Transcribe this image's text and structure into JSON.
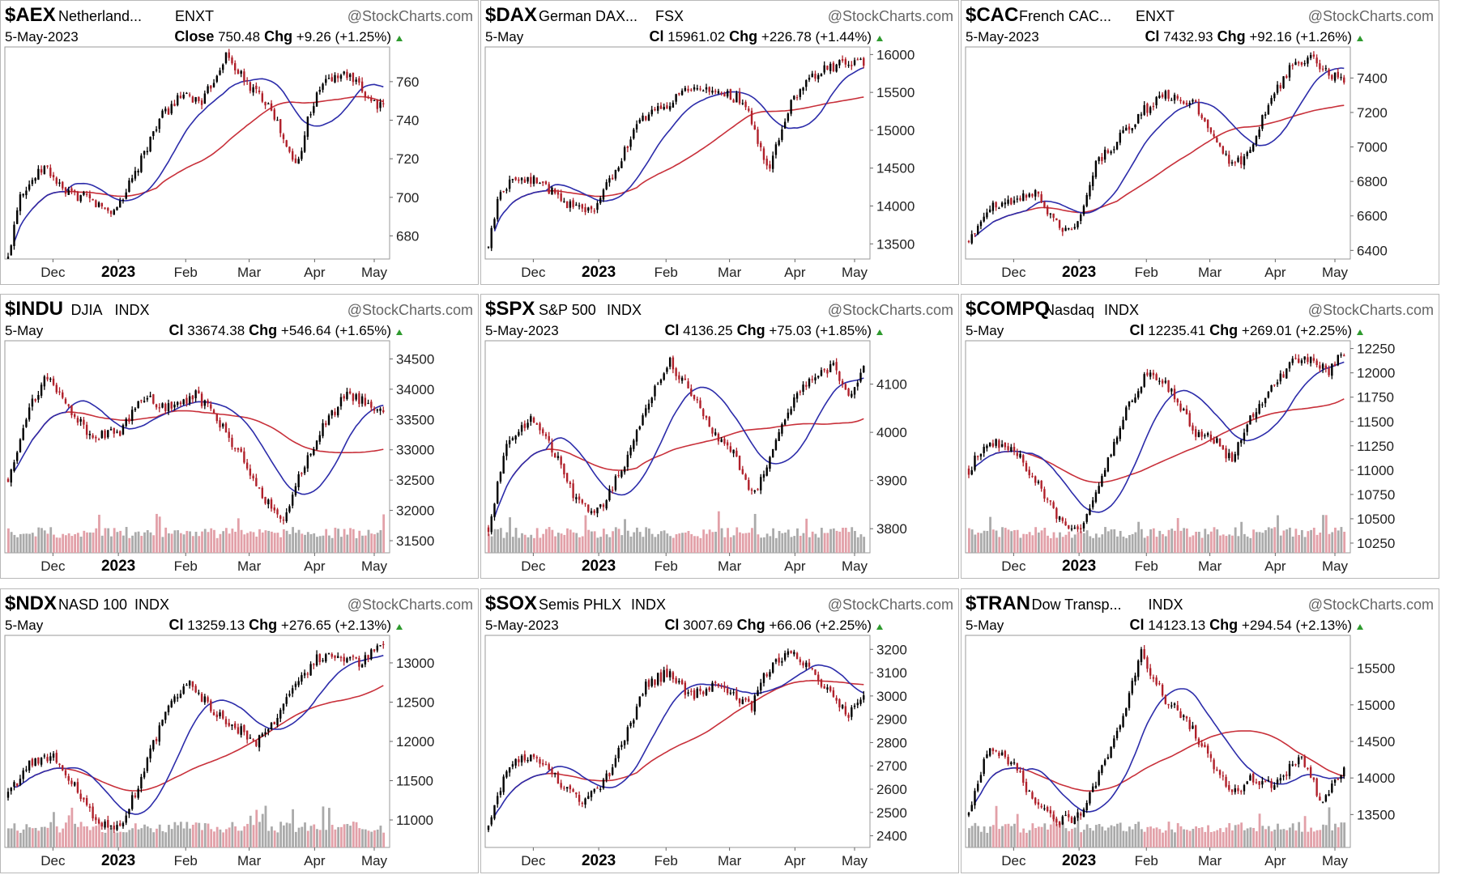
{
  "watermark": "@StockCharts.com",
  "colors": {
    "up": "#000000",
    "down": "#b0202a",
    "ma_short": "#2c2caa",
    "ma_long": "#c8303a",
    "vol_gray": "#aaaaaa",
    "vol_red": "#e2a0a8",
    "up_arrow": "#2e9a2e"
  },
  "chart_data": [
    {
      "type": "candlestick",
      "symbol": "$AEX",
      "name": "Netherland...",
      "exchange": "ENXT",
      "date": "5-May-2023",
      "close_label": "Close",
      "close": "750.48",
      "chg_label": "Chg",
      "chg": "+9.26 (+1.25%)",
      "y_ticks": [
        680,
        700,
        720,
        740,
        760
      ],
      "ylim": [
        668,
        778
      ],
      "x_ticks": [
        "Dec",
        "2023",
        "Feb",
        "Mar",
        "Apr",
        "May"
      ],
      "volume": false,
      "anchors": [
        [
          0,
          668
        ],
        [
          0.03,
          702
        ],
        [
          0.1,
          716
        ],
        [
          0.15,
          702
        ],
        [
          0.2,
          700
        ],
        [
          0.28,
          692
        ],
        [
          0.34,
          712
        ],
        [
          0.4,
          740
        ],
        [
          0.46,
          752
        ],
        [
          0.52,
          750
        ],
        [
          0.58,
          774
        ],
        [
          0.64,
          758
        ],
        [
          0.7,
          748
        ],
        [
          0.74,
          726
        ],
        [
          0.77,
          716
        ],
        [
          0.8,
          742
        ],
        [
          0.84,
          760
        ],
        [
          0.9,
          764
        ],
        [
          0.96,
          752
        ],
        [
          1,
          746
        ]
      ]
    },
    {
      "type": "candlestick",
      "symbol": "$DAX",
      "name": "German DAX...",
      "exchange": "FSX",
      "date": "5-May",
      "close_label": "Cl",
      "close": "15961.02",
      "chg_label": "Chg",
      "chg": "+226.78 (+1.44%)",
      "y_ticks": [
        13500,
        14000,
        14500,
        15000,
        15500,
        16000
      ],
      "ylim": [
        13300,
        16100
      ],
      "x_ticks": [
        "Dec",
        "2023",
        "Feb",
        "Mar",
        "Apr",
        "May"
      ],
      "volume": false,
      "anchors": [
        [
          0,
          13450
        ],
        [
          0.03,
          14200
        ],
        [
          0.08,
          14400
        ],
        [
          0.14,
          14300
        ],
        [
          0.2,
          14050
        ],
        [
          0.28,
          13950
        ],
        [
          0.34,
          14500
        ],
        [
          0.4,
          15100
        ],
        [
          0.46,
          15300
        ],
        [
          0.52,
          15500
        ],
        [
          0.6,
          15500
        ],
        [
          0.68,
          15400
        ],
        [
          0.72,
          14800
        ],
        [
          0.75,
          14500
        ],
        [
          0.8,
          15300
        ],
        [
          0.86,
          15700
        ],
        [
          0.92,
          15850
        ],
        [
          1,
          15900
        ]
      ]
    },
    {
      "type": "candlestick",
      "symbol": "$CAC",
      "name": "French CAC...",
      "exchange": "ENXT",
      "date": "5-May-2023",
      "close_label": "Cl",
      "close": "7432.93",
      "chg_label": "Chg",
      "chg": "+92.16 (+1.26%)",
      "y_ticks": [
        6400,
        6600,
        6800,
        7000,
        7200,
        7400
      ],
      "ylim": [
        6350,
        7580
      ],
      "x_ticks": [
        "Dec",
        "2023",
        "Feb",
        "Mar",
        "Apr",
        "May"
      ],
      "volume": false,
      "anchors": [
        [
          0,
          6450
        ],
        [
          0.05,
          6650
        ],
        [
          0.12,
          6700
        ],
        [
          0.18,
          6750
        ],
        [
          0.23,
          6550
        ],
        [
          0.28,
          6500
        ],
        [
          0.34,
          6900
        ],
        [
          0.4,
          7050
        ],
        [
          0.46,
          7200
        ],
        [
          0.52,
          7300
        ],
        [
          0.6,
          7250
        ],
        [
          0.66,
          7050
        ],
        [
          0.7,
          6880
        ],
        [
          0.74,
          6950
        ],
        [
          0.8,
          7250
        ],
        [
          0.86,
          7480
        ],
        [
          0.92,
          7520
        ],
        [
          0.96,
          7420
        ],
        [
          1,
          7380
        ]
      ]
    },
    {
      "type": "candlestick",
      "symbol": "$INDU",
      "name": "DJIA",
      "exchange": "INDX",
      "date": "5-May",
      "close_label": "Cl",
      "close": "33674.38",
      "chg_label": "Chg",
      "chg": "+546.64 (+1.65%)",
      "y_ticks": [
        31500,
        32000,
        32500,
        33000,
        33500,
        34000,
        34500
      ],
      "ylim": [
        31300,
        34800
      ],
      "x_ticks": [
        "Dec",
        "2023",
        "Feb",
        "Mar",
        "Apr",
        "May"
      ],
      "volume": true,
      "anchors": [
        [
          0,
          32500
        ],
        [
          0.05,
          33600
        ],
        [
          0.1,
          34200
        ],
        [
          0.15,
          33800
        ],
        [
          0.22,
          33200
        ],
        [
          0.3,
          33300
        ],
        [
          0.36,
          33900
        ],
        [
          0.42,
          33700
        ],
        [
          0.5,
          33900
        ],
        [
          0.56,
          33500
        ],
        [
          0.62,
          32900
        ],
        [
          0.68,
          32200
        ],
        [
          0.73,
          31850
        ],
        [
          0.78,
          32600
        ],
        [
          0.84,
          33400
        ],
        [
          0.9,
          33900
        ],
        [
          0.96,
          33800
        ],
        [
          1,
          33600
        ]
      ]
    },
    {
      "type": "candlestick",
      "symbol": "$SPX",
      "name": "S&P 500",
      "exchange": "INDX",
      "date": "5-May-2023",
      "close_label": "Cl",
      "close": "4136.25",
      "chg_label": "Chg",
      "chg": "+75.03 (+1.85%)",
      "y_ticks": [
        3800,
        3900,
        4000,
        4100
      ],
      "ylim": [
        3750,
        4190
      ],
      "x_ticks": [
        "Dec",
        "2023",
        "Feb",
        "Mar",
        "Apr",
        "May"
      ],
      "volume": true,
      "anchors": [
        [
          0,
          3800
        ],
        [
          0.05,
          3990
        ],
        [
          0.12,
          4030
        ],
        [
          0.18,
          3950
        ],
        [
          0.24,
          3850
        ],
        [
          0.3,
          3840
        ],
        [
          0.36,
          3930
        ],
        [
          0.42,
          4050
        ],
        [
          0.48,
          4150
        ],
        [
          0.54,
          4080
        ],
        [
          0.6,
          4000
        ],
        [
          0.66,
          3950
        ],
        [
          0.7,
          3870
        ],
        [
          0.74,
          3920
        ],
        [
          0.8,
          4050
        ],
        [
          0.86,
          4110
        ],
        [
          0.92,
          4140
        ],
        [
          0.96,
          4080
        ],
        [
          1,
          4130
        ]
      ]
    },
    {
      "type": "candlestick",
      "symbol": "$COMPQ",
      "name": "Nasdaq",
      "exchange": "INDX",
      "date": "5-May",
      "close_label": "Cl",
      "close": "12235.41",
      "chg_label": "Chg",
      "chg": "+269.01 (+2.25%)",
      "y_ticks": [
        10250,
        10500,
        10750,
        11000,
        11250,
        11500,
        11750,
        12000,
        12250
      ],
      "ylim": [
        10150,
        12330
      ],
      "x_ticks": [
        "Dec",
        "2023",
        "Feb",
        "Mar",
        "Apr",
        "May"
      ],
      "volume": true,
      "anchors": [
        [
          0,
          11000
        ],
        [
          0.05,
          11300
        ],
        [
          0.12,
          11200
        ],
        [
          0.18,
          10900
        ],
        [
          0.24,
          10500
        ],
        [
          0.3,
          10350
        ],
        [
          0.36,
          11000
        ],
        [
          0.42,
          11600
        ],
        [
          0.48,
          12050
        ],
        [
          0.54,
          11800
        ],
        [
          0.6,
          11400
        ],
        [
          0.66,
          11300
        ],
        [
          0.7,
          11100
        ],
        [
          0.74,
          11500
        ],
        [
          0.8,
          11800
        ],
        [
          0.86,
          12100
        ],
        [
          0.92,
          12150
        ],
        [
          0.96,
          12000
        ],
        [
          1,
          12220
        ]
      ]
    },
    {
      "type": "candlestick",
      "symbol": "$NDX",
      "name": "NASD 100",
      "exchange": "INDX",
      "date": "5-May",
      "close_label": "Cl",
      "close": "13259.13",
      "chg_label": "Chg",
      "chg": "+276.65 (+2.13%)",
      "y_ticks": [
        11000,
        11500,
        12000,
        12500,
        13000
      ],
      "ylim": [
        10650,
        13350
      ],
      "x_ticks": [
        "Dec",
        "2023",
        "Feb",
        "Mar",
        "Apr",
        "May"
      ],
      "volume": true,
      "anchors": [
        [
          0,
          11300
        ],
        [
          0.05,
          11700
        ],
        [
          0.12,
          11800
        ],
        [
          0.18,
          11400
        ],
        [
          0.24,
          10950
        ],
        [
          0.3,
          10900
        ],
        [
          0.36,
          11600
        ],
        [
          0.42,
          12400
        ],
        [
          0.48,
          12800
        ],
        [
          0.54,
          12400
        ],
        [
          0.6,
          12200
        ],
        [
          0.66,
          12000
        ],
        [
          0.7,
          12200
        ],
        [
          0.76,
          12700
        ],
        [
          0.82,
          13050
        ],
        [
          0.88,
          13100
        ],
        [
          0.94,
          13000
        ],
        [
          1,
          13250
        ]
      ]
    },
    {
      "type": "candlestick",
      "symbol": "$SOX",
      "name": "Semis PHLX",
      "exchange": "INDX",
      "date": "5-May-2023",
      "close_label": "Cl",
      "close": "3007.69",
      "chg_label": "Chg",
      "chg": "+66.06 (+2.25%)",
      "y_ticks": [
        2400,
        2500,
        2600,
        2700,
        2800,
        2900,
        3000,
        3100,
        3200
      ],
      "ylim": [
        2350,
        3260
      ],
      "x_ticks": [
        "Dec",
        "2023",
        "Feb",
        "Mar",
        "Apr",
        "May"
      ],
      "volume": false,
      "anchors": [
        [
          0,
          2430
        ],
        [
          0.05,
          2700
        ],
        [
          0.12,
          2750
        ],
        [
          0.18,
          2650
        ],
        [
          0.24,
          2550
        ],
        [
          0.3,
          2600
        ],
        [
          0.36,
          2800
        ],
        [
          0.42,
          3050
        ],
        [
          0.48,
          3100
        ],
        [
          0.54,
          3000
        ],
        [
          0.6,
          3050
        ],
        [
          0.66,
          3000
        ],
        [
          0.7,
          2950
        ],
        [
          0.74,
          3100
        ],
        [
          0.8,
          3200
        ],
        [
          0.86,
          3100
        ],
        [
          0.92,
          3000
        ],
        [
          0.96,
          2920
        ],
        [
          1,
          3000
        ]
      ]
    },
    {
      "type": "candlestick",
      "symbol": "$TRAN",
      "name": "Dow Transp...",
      "exchange": "INDX",
      "date": "5-May",
      "close_label": "Cl",
      "close": "14123.13",
      "chg_label": "Chg",
      "chg": "+294.54 (+2.13%)",
      "y_ticks": [
        13500,
        14000,
        14500,
        15000,
        15500
      ],
      "ylim": [
        13050,
        15950
      ],
      "x_ticks": [
        "Dec",
        "2023",
        "Feb",
        "Mar",
        "Apr",
        "May"
      ],
      "volume": true,
      "anchors": [
        [
          0,
          13500
        ],
        [
          0.05,
          14400
        ],
        [
          0.12,
          14200
        ],
        [
          0.18,
          13600
        ],
        [
          0.24,
          13400
        ],
        [
          0.3,
          13500
        ],
        [
          0.36,
          14200
        ],
        [
          0.42,
          15000
        ],
        [
          0.46,
          15700
        ],
        [
          0.52,
          15100
        ],
        [
          0.58,
          14800
        ],
        [
          0.64,
          14300
        ],
        [
          0.7,
          13800
        ],
        [
          0.76,
          14000
        ],
        [
          0.82,
          13900
        ],
        [
          0.88,
          14300
        ],
        [
          0.94,
          13700
        ],
        [
          1,
          14100
        ]
      ]
    }
  ]
}
